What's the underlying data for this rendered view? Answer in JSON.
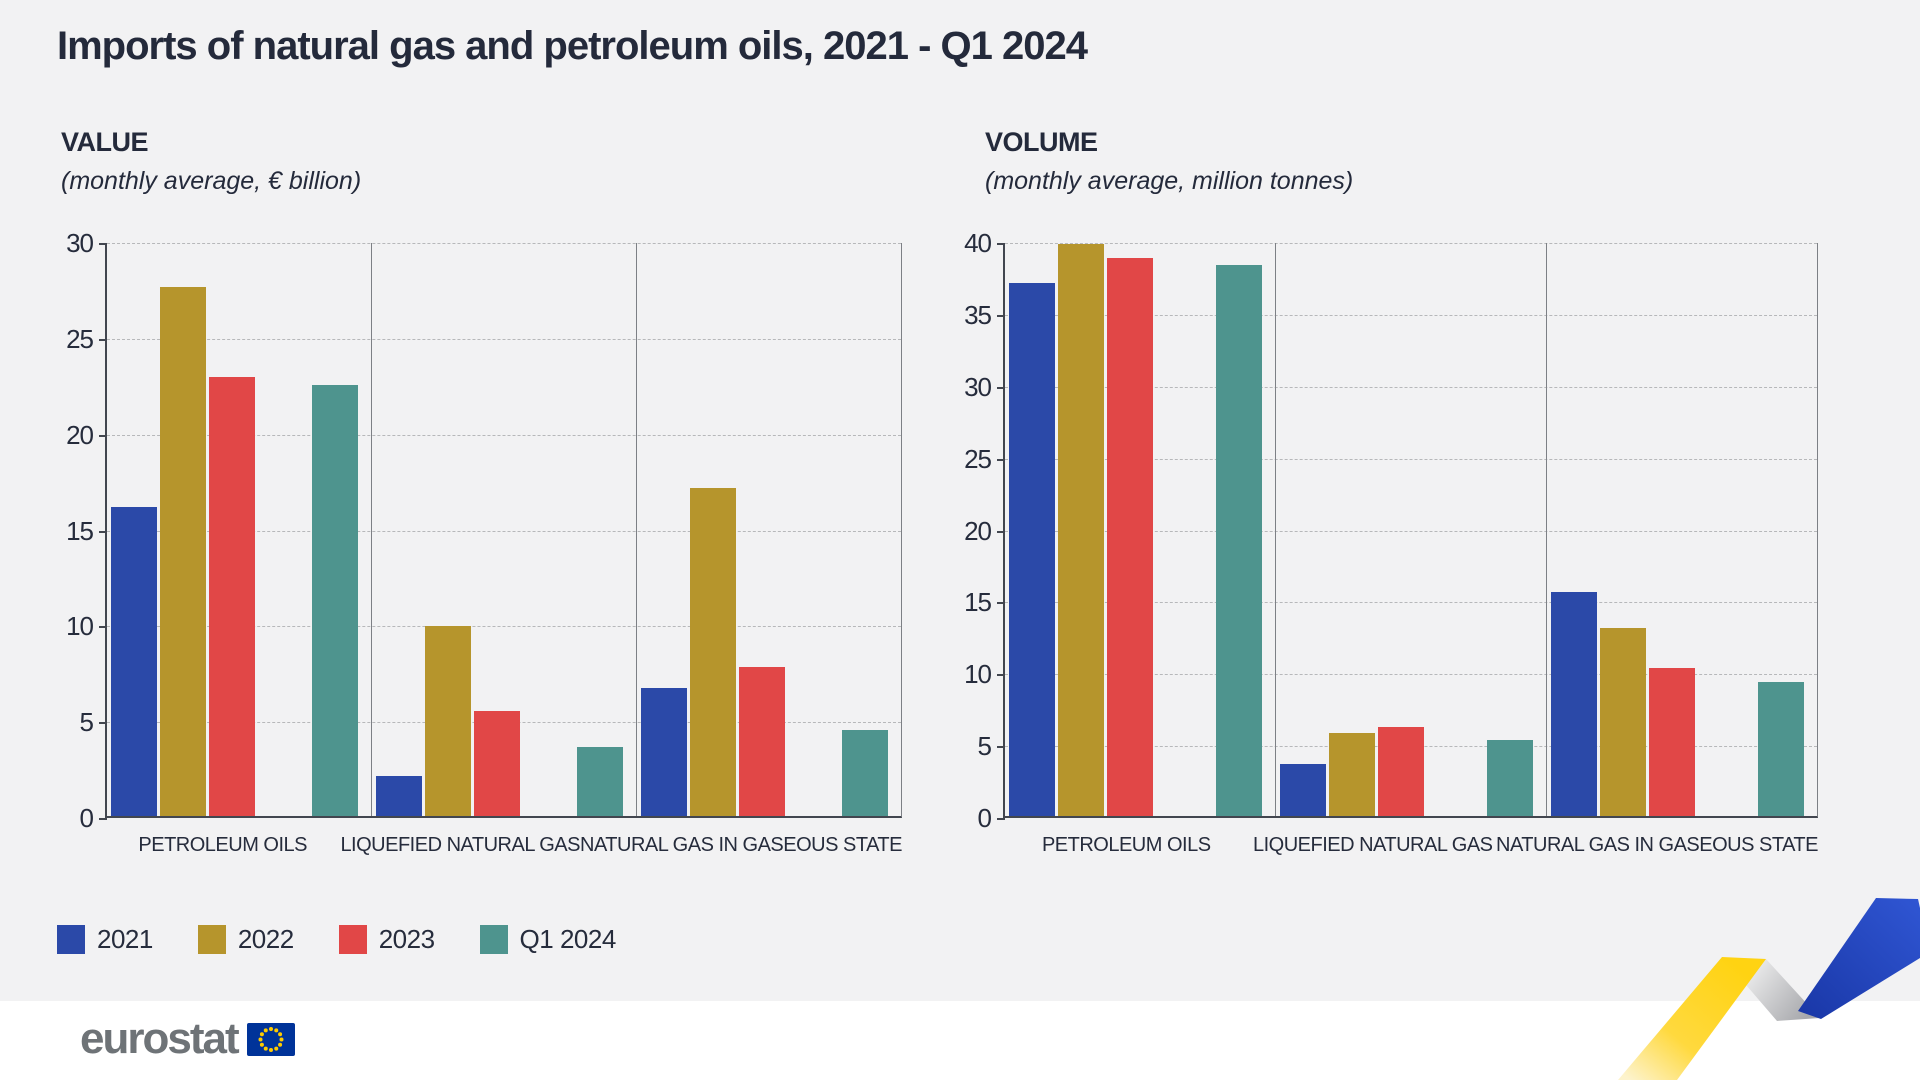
{
  "title": "Imports of natural gas and petroleum oils, 2021 - Q1 2024",
  "colors": {
    "background": "#f2f2f3",
    "footer_background": "#ffffff",
    "text": "#262c3c",
    "gridline": "#b7b8ba",
    "axis": "#42464f",
    "series_2021": "#2b49a8",
    "series_2022": "#b6952c",
    "series_2023": "#e14747",
    "series_q1_2024": "#4e948e"
  },
  "legend": [
    {
      "label": "2021",
      "color": "#2b49a8"
    },
    {
      "label": "2022",
      "color": "#b6952c"
    },
    {
      "label": "2023",
      "color": "#e14747"
    },
    {
      "label": "Q1 2024",
      "color": "#4e948e"
    }
  ],
  "footer": {
    "logo_text": "eurostat"
  },
  "chart_data": [
    {
      "type": "bar",
      "title": "VALUE",
      "subtitle": "(monthly average, € billion)",
      "categories": [
        "PETROLEUM OILS",
        "LIQUEFIED NATURAL GAS",
        "NATURAL GAS IN GASEOUS STATE"
      ],
      "series": [
        {
          "name": "2021",
          "color": "#2b49a8",
          "values": [
            16.1,
            2.1,
            6.7
          ]
        },
        {
          "name": "2022",
          "color": "#b6952c",
          "values": [
            27.6,
            9.9,
            17.1
          ]
        },
        {
          "name": "2023",
          "color": "#e14747",
          "values": [
            22.9,
            5.5,
            7.8
          ]
        },
        {
          "name": "Q1 2024",
          "color": "#4e948e",
          "values": [
            22.5,
            3.6,
            4.5
          ]
        }
      ],
      "ylim": [
        0,
        30
      ],
      "ytick_step": 5,
      "grid": "dashed-horizontal",
      "legend_position": "bottom-left"
    },
    {
      "type": "bar",
      "title": "VOLUME",
      "subtitle": "(monthly average, million tonnes)",
      "categories": [
        "PETROLEUM OILS",
        "LIQUEFIED NATURAL GAS",
        "NATURAL GAS IN GASEOUS STATE"
      ],
      "series": [
        {
          "name": "2021",
          "color": "#2b49a8",
          "values": [
            37.1,
            3.6,
            15.6
          ]
        },
        {
          "name": "2022",
          "color": "#b6952c",
          "values": [
            39.8,
            5.8,
            13.1
          ]
        },
        {
          "name": "2023",
          "color": "#e14747",
          "values": [
            38.8,
            6.2,
            10.3
          ]
        },
        {
          "name": "Q1 2024",
          "color": "#4e948e",
          "values": [
            38.3,
            5.3,
            9.3
          ]
        }
      ],
      "ylim": [
        0,
        40
      ],
      "ytick_step": 5,
      "grid": "dashed-horizontal",
      "legend_position": "shared"
    }
  ]
}
